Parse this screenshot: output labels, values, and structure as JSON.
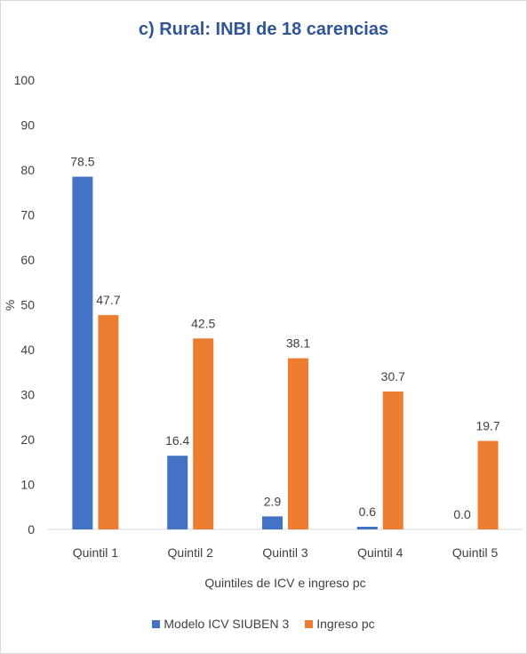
{
  "chart_data": {
    "type": "bar",
    "title": "c) Rural: INBI de 18 carencias",
    "xlabel": "Quintiles de ICV e ingreso pc",
    "ylabel": "%",
    "ylim": [
      0,
      100
    ],
    "yticks": [
      "0",
      "10",
      "20",
      "30",
      "40",
      "50",
      "60",
      "70",
      "80",
      "90",
      "100"
    ],
    "grid": false,
    "legend_position": "bottom",
    "categories": [
      "Quintil 1",
      "Quintil 2",
      "Quintil 3",
      "Quintil 4",
      "Quintil 5"
    ],
    "series": [
      {
        "name": "Modelo ICV SIUBEN 3",
        "color": "#4472c4",
        "values": [
          78.5,
          16.4,
          2.9,
          0.6,
          0.0
        ],
        "labels": [
          "78.5",
          "16.4",
          "2.9",
          "0.6",
          "0.0"
        ]
      },
      {
        "name": "Ingreso pc",
        "color": "#ed7d31",
        "values": [
          47.7,
          42.5,
          38.1,
          30.7,
          19.7
        ],
        "labels": [
          "47.7",
          "42.5",
          "38.1",
          "30.7",
          "19.7"
        ]
      }
    ]
  }
}
